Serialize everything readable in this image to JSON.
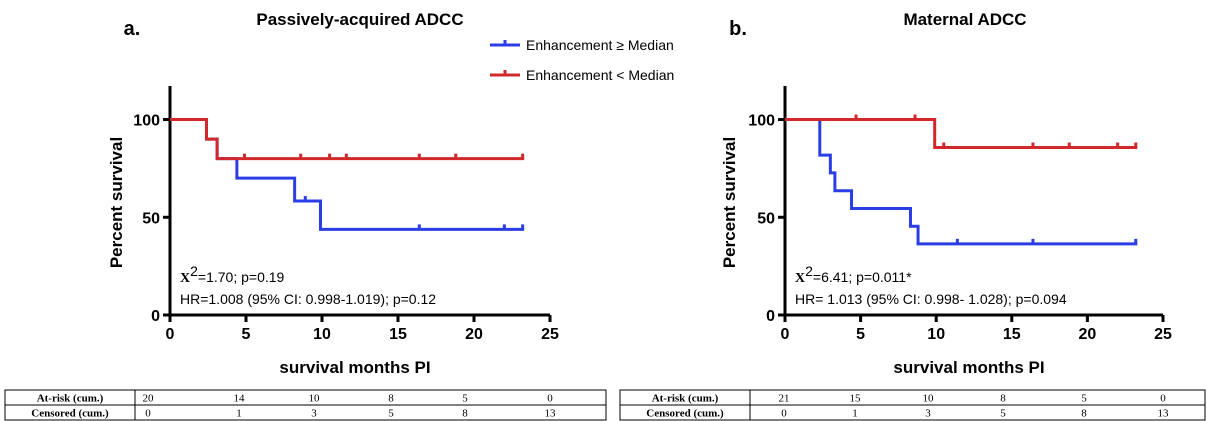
{
  "legend": {
    "items": [
      {
        "label": "Enhancement ≥ Median",
        "color": "#2b3ee6"
      },
      {
        "label": "Enhancement < Median",
        "color": "#d1282c"
      }
    ]
  },
  "chart_data": [
    {
      "type": "line",
      "step": true,
      "panel_label": "a.",
      "title": "Passively-acquired ADCC",
      "xlabel": "survival months PI",
      "ylabel": "Percent survival",
      "xlim": [
        0,
        25
      ],
      "ylim": [
        0,
        110
      ],
      "xticks": [
        "0",
        "5",
        "10",
        "15",
        "20",
        "25"
      ],
      "yticks": [
        "0",
        "50",
        "100"
      ],
      "stat_chi_symbol": "X",
      "stat_chi_rest": "=1.70; p=0.19",
      "stat_hr": "HR=1.008 (95% CI: 0.998-1.019); p=0.12",
      "series": [
        {
          "name": "Enhancement ≥ Median",
          "color": "#2b3ee6",
          "steps": [
            [
              0,
              100
            ],
            [
              2.4,
              90
            ],
            [
              3.1,
              80
            ],
            [
              4.4,
              70
            ],
            [
              8.2,
              58.3
            ],
            [
              9.9,
              43.8
            ],
            [
              23.3,
              43.8
            ]
          ],
          "censored": [
            [
              8.9,
              58.3
            ],
            [
              16.4,
              43.8
            ],
            [
              22.0,
              43.8
            ],
            [
              23.2,
              43.8
            ]
          ]
        },
        {
          "name": "Enhancement < Median",
          "color": "#d1282c",
          "steps": [
            [
              0,
              100
            ],
            [
              2.4,
              90
            ],
            [
              3.1,
              80
            ],
            [
              23.3,
              80
            ]
          ],
          "censored": [
            [
              4.9,
              80
            ],
            [
              8.6,
              80
            ],
            [
              10.5,
              80
            ],
            [
              11.6,
              80
            ],
            [
              16.4,
              80
            ],
            [
              18.8,
              80
            ],
            [
              23.2,
              80
            ]
          ]
        }
      ],
      "table": {
        "rows": [
          {
            "label": "At-risk (cum.)",
            "values": [
              "20",
              "14",
              "10",
              "8",
              "5",
              "0"
            ]
          },
          {
            "label": "Censored (cum.)",
            "values": [
              "0",
              "1",
              "3",
              "5",
              "8",
              "13"
            ]
          }
        ]
      }
    },
    {
      "type": "line",
      "step": true,
      "panel_label": "b.",
      "title": "Maternal ADCC",
      "xlabel": "survival months PI",
      "ylabel": "Percent survival",
      "xlim": [
        0,
        25
      ],
      "ylim": [
        0,
        110
      ],
      "xticks": [
        "0",
        "5",
        "10",
        "15",
        "20",
        "25"
      ],
      "yticks": [
        "0",
        "50",
        "100"
      ],
      "stat_chi_symbol": "X",
      "stat_chi_rest": "=6.41; p=0.011*",
      "stat_hr": "HR= 1.013 (95% CI: 0.998- 1.028); p=0.094",
      "series": [
        {
          "name": "Enhancement ≥ Median",
          "color": "#2b3ee6",
          "steps": [
            [
              0,
              100
            ],
            [
              2.3,
              81.8
            ],
            [
              3.0,
              72.7
            ],
            [
              3.3,
              63.6
            ],
            [
              4.4,
              54.5
            ],
            [
              8.3,
              45.4
            ],
            [
              8.8,
              36.4
            ],
            [
              23.3,
              36.4
            ]
          ],
          "censored": [
            [
              11.4,
              36.4
            ],
            [
              16.4,
              36.4
            ],
            [
              23.2,
              36.4
            ]
          ]
        },
        {
          "name": "Enhancement < Median",
          "color": "#d1282c",
          "steps": [
            [
              0,
              100
            ],
            [
              9.9,
              85.7
            ],
            [
              23.3,
              85.7
            ]
          ],
          "censored": [
            [
              4.7,
              100
            ],
            [
              8.6,
              100
            ],
            [
              10.5,
              85.7
            ],
            [
              16.4,
              85.7
            ],
            [
              18.8,
              85.7
            ],
            [
              22.0,
              85.7
            ],
            [
              23.2,
              85.7
            ]
          ]
        }
      ],
      "table": {
        "rows": [
          {
            "label": "At-risk (cum.)",
            "values": [
              "21",
              "15",
              "10",
              "8",
              "5",
              "0"
            ]
          },
          {
            "label": "Censored (cum.)",
            "values": [
              "0",
              "1",
              "3",
              "5",
              "8",
              "13"
            ]
          }
        ]
      }
    }
  ]
}
